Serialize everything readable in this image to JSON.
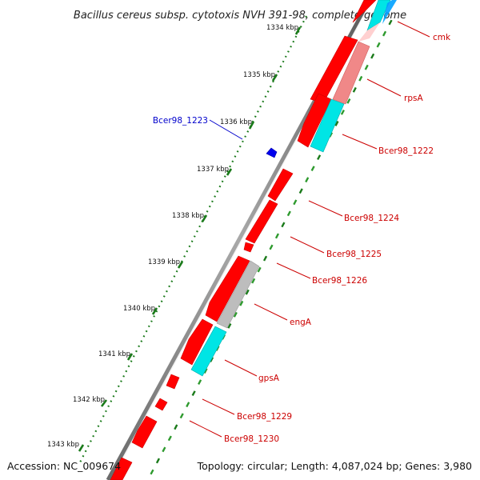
{
  "title": "Bacillus cereus subsp. cytotoxis NVH 391-98, complete genome",
  "footer": {
    "accession": "Accession: NC_009674",
    "summary": "Topology: circular; Length: 4,087,024 bp; Genes: 3,980"
  },
  "colors": {
    "cds_forward": "#ff0000",
    "cds_reverse": "#ff0000",
    "rna": "#00e5e5",
    "pseudo": "#b4b4b4",
    "ruler_dots": "#1a7a1a",
    "label_reverse": "#cc0000",
    "label_forward": "#0000cc"
  },
  "ruler": {
    "unit": "kbp",
    "ticks": [
      "1334 kbp",
      "1335 kbp",
      "1336 kbp",
      "1337 kbp",
      "1338 kbp",
      "1339 kbp",
      "1340 kbp",
      "1341 kbp",
      "1342 kbp",
      "1343 kbp"
    ]
  },
  "genes": [
    {
      "label": "cmk",
      "strand": "reverse",
      "label_color": "red"
    },
    {
      "label": "rpsA",
      "strand": "reverse",
      "label_color": "red"
    },
    {
      "label": "Bcer98_1222",
      "strand": "reverse",
      "label_color": "red"
    },
    {
      "label": "Bcer98_1223",
      "strand": "forward",
      "label_color": "blue"
    },
    {
      "label": "Bcer98_1224",
      "strand": "reverse",
      "label_color": "red"
    },
    {
      "label": "Bcer98_1225",
      "strand": "reverse",
      "label_color": "red"
    },
    {
      "label": "Bcer98_1226",
      "strand": "reverse",
      "label_color": "red"
    },
    {
      "label": "engA",
      "strand": "reverse",
      "label_color": "red"
    },
    {
      "label": "gpsA",
      "strand": "reverse",
      "label_color": "red"
    },
    {
      "label": "Bcer98_1229",
      "strand": "reverse",
      "label_color": "red"
    },
    {
      "label": "Bcer98_1230",
      "strand": "reverse",
      "label_color": "red"
    }
  ]
}
